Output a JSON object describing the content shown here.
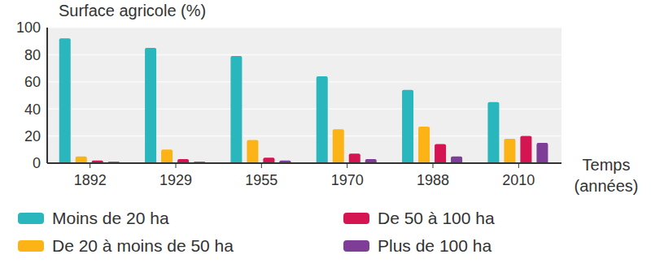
{
  "chart_data": {
    "type": "bar",
    "y_label": "Surface agricole (%)",
    "x_label": "Temps (années)",
    "categories": [
      "1892",
      "1929",
      "1955",
      "1970",
      "1988",
      "2010"
    ],
    "series": [
      {
        "name": "Moins de 20 ha",
        "color": "#29b6bd",
        "values": [
          92,
          85,
          79,
          64,
          54,
          45
        ]
      },
      {
        "name": "De 20 à moins de 50 ha",
        "color": "#fbb315",
        "values": [
          5,
          10,
          17,
          25,
          27,
          18
        ]
      },
      {
        "name": "De 50 à 100 ha",
        "color": "#d51551",
        "values": [
          2,
          3,
          4,
          7,
          14,
          20
        ]
      },
      {
        "name": "Plus de 100 ha",
        "color": "#7e3d96",
        "values": [
          1,
          1,
          2,
          3,
          5,
          15
        ]
      }
    ],
    "ylim": [
      0,
      100
    ],
    "yticks": [
      0,
      20,
      40,
      60,
      80,
      100
    ],
    "grid": true,
    "legend": "bottom"
  }
}
